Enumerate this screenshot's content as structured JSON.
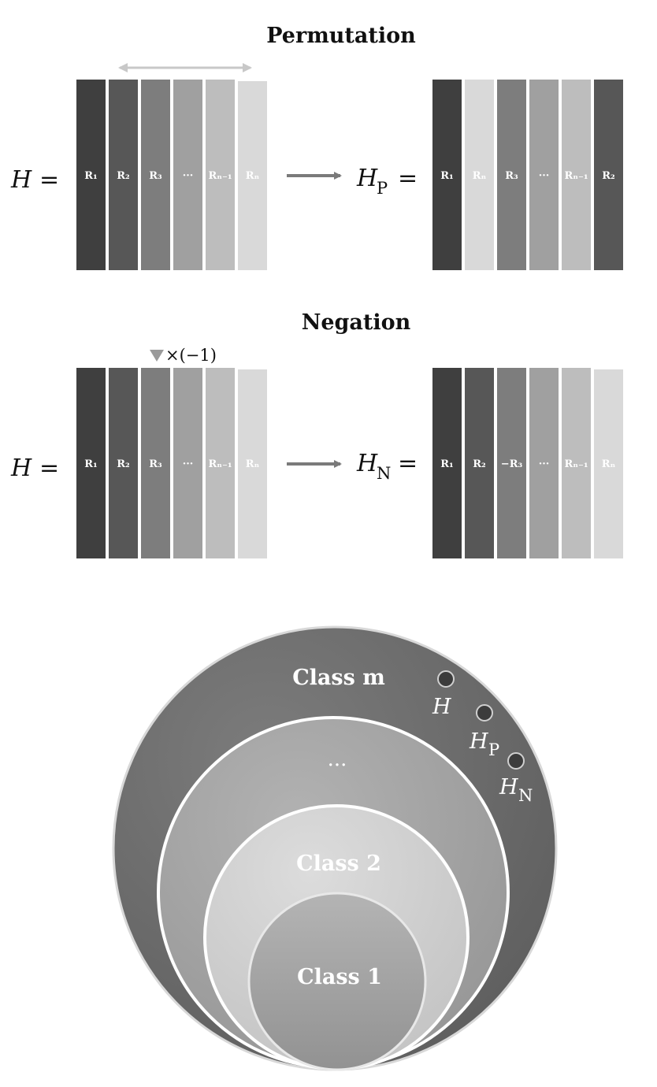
{
  "permutation": {
    "title": "Permutation",
    "lhs_symbol": "H",
    "equals": "=",
    "rhs_symbol": "H",
    "rhs_subscript": "P",
    "left_columns": [
      {
        "label": "R₁",
        "color": "#3f3f3f",
        "text_color": "#ffffff"
      },
      {
        "label": "R₂",
        "color": "#575757",
        "text_color": "#ffffff"
      },
      {
        "label": "R₃",
        "color": "#7d7d7d",
        "text_color": "#ffffff"
      },
      {
        "label": "···",
        "color": "#a0a0a0",
        "text_color": "#ffffff"
      },
      {
        "label": "Rₙ₋₁",
        "color": "#bdbdbd",
        "text_color": "#ffffff"
      },
      {
        "label": "Rₙ",
        "color": "#d9d9d9",
        "text_color": "#ffffff"
      }
    ],
    "right_columns": [
      {
        "label": "R₁",
        "color": "#3f3f3f",
        "text_color": "#ffffff"
      },
      {
        "label": "Rₙ",
        "color": "#d9d9d9",
        "text_color": "#ffffff"
      },
      {
        "label": "R₃",
        "color": "#7d7d7d",
        "text_color": "#ffffff"
      },
      {
        "label": "···",
        "color": "#a0a0a0",
        "text_color": "#ffffff"
      },
      {
        "label": "Rₙ₋₁",
        "color": "#bdbdbd",
        "text_color": "#ffffff"
      },
      {
        "label": "R₂",
        "color": "#575757",
        "text_color": "#ffffff"
      }
    ],
    "swap_arrow_color": "#c8c8c8"
  },
  "negation": {
    "title": "Negation",
    "lhs_symbol": "H",
    "equals": "=",
    "rhs_symbol": "H",
    "rhs_subscript": "N",
    "multiplier": "×(−1)",
    "left_columns": [
      {
        "label": "R₁",
        "color": "#3f3f3f",
        "text_color": "#ffffff"
      },
      {
        "label": "R₂",
        "color": "#575757",
        "text_color": "#ffffff"
      },
      {
        "label": "R₃",
        "color": "#7d7d7d",
        "text_color": "#ffffff"
      },
      {
        "label": "···",
        "color": "#a0a0a0",
        "text_color": "#ffffff"
      },
      {
        "label": "Rₙ₋₁",
        "color": "#bdbdbd",
        "text_color": "#ffffff"
      },
      {
        "label": "Rₙ",
        "color": "#d9d9d9",
        "text_color": "#ffffff"
      }
    ],
    "right_columns": [
      {
        "label": "R₁",
        "color": "#3f3f3f",
        "text_color": "#ffffff"
      },
      {
        "label": "R₂",
        "color": "#575757",
        "text_color": "#ffffff"
      },
      {
        "label": "−R₃",
        "color": "#7d7d7d",
        "text_color": "#ffffff"
      },
      {
        "label": "···",
        "color": "#a0a0a0",
        "text_color": "#ffffff"
      },
      {
        "label": "Rₙ₋₁",
        "color": "#bdbdbd",
        "text_color": "#ffffff"
      },
      {
        "label": "Rₙ",
        "color": "#d9d9d9",
        "text_color": "#ffffff"
      }
    ],
    "marker_color": "#9a9a9a"
  },
  "arrow_color": "#7a7a7a",
  "classes": {
    "class_m": "Class m",
    "ellipsis": "···",
    "class_2": "Class 2",
    "class_1": "Class 1",
    "points": [
      {
        "symbol": "H",
        "subscript": ""
      },
      {
        "symbol": "H",
        "subscript": "P"
      },
      {
        "symbol": "H",
        "subscript": "N"
      }
    ],
    "colors": {
      "outer": "#6e6e6e",
      "middle": "#a8a8a8",
      "inner": "#d3d3d3",
      "core": "#a6a6a6",
      "point": "#3c3c3c"
    }
  }
}
